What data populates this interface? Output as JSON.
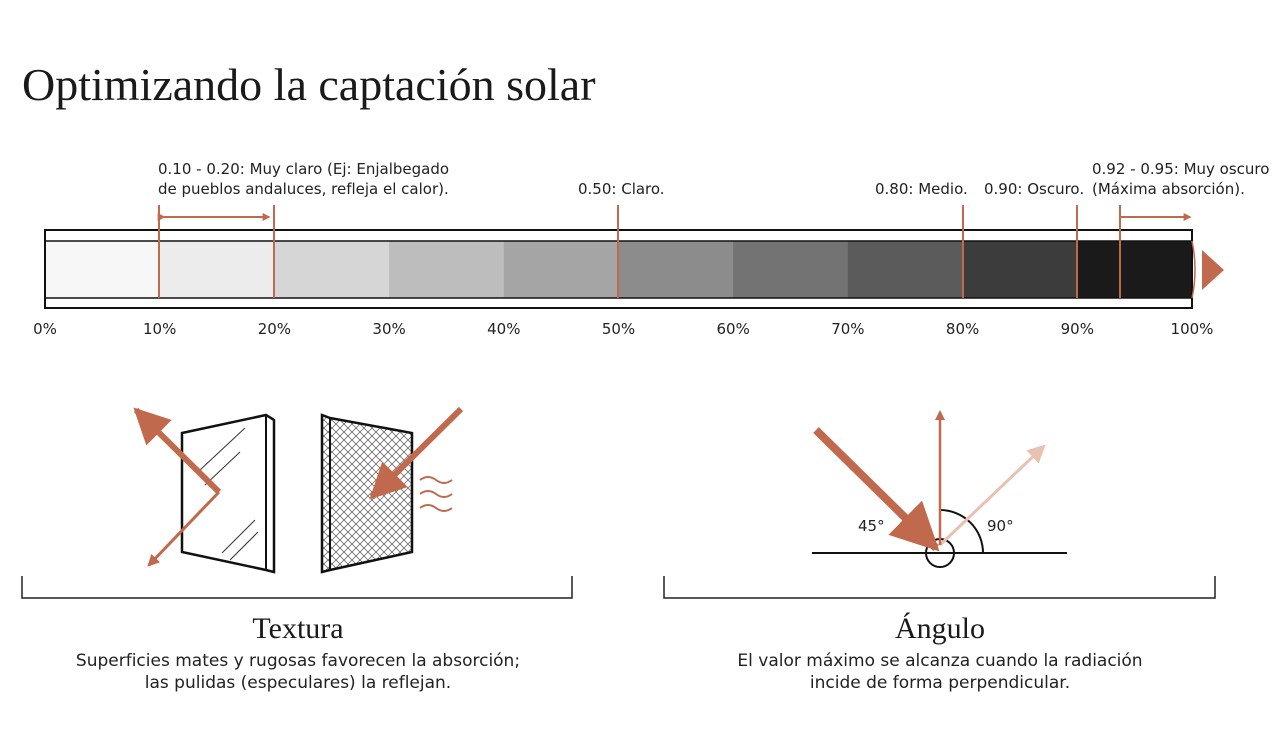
{
  "title": "Optimizando la captación solar",
  "scale": {
    "ticks": [
      "0%",
      "10%",
      "20%",
      "30%",
      "40%",
      "50%",
      "60%",
      "70%",
      "80%",
      "90%",
      "100%"
    ],
    "annotations": [
      {
        "lines": [
          "0.10 - 0.20: Muy claro (Ej: Enjalbegado",
          "de pueblos andaluces, refleja el calor)."
        ]
      },
      {
        "lines": [
          "0.50: Claro."
        ]
      },
      {
        "lines": [
          "0.80: Medio."
        ]
      },
      {
        "lines": [
          "0.90: Oscuro."
        ]
      },
      {
        "lines": [
          "0.92 - 0.95: Muy oscuro",
          "(Máxima absorción)."
        ]
      }
    ]
  },
  "sections": [
    {
      "title": "Textura",
      "description": [
        "Superficies mates y rugosas favorecen la absorción;",
        "las pulidas (especulares) la reflejan."
      ]
    },
    {
      "title": "Ángulo",
      "description": [
        "El valor máximo se alcanza cuando la radiación",
        "incide de forma perpendicular."
      ],
      "labels": [
        "45°",
        "90°"
      ]
    }
  ]
}
